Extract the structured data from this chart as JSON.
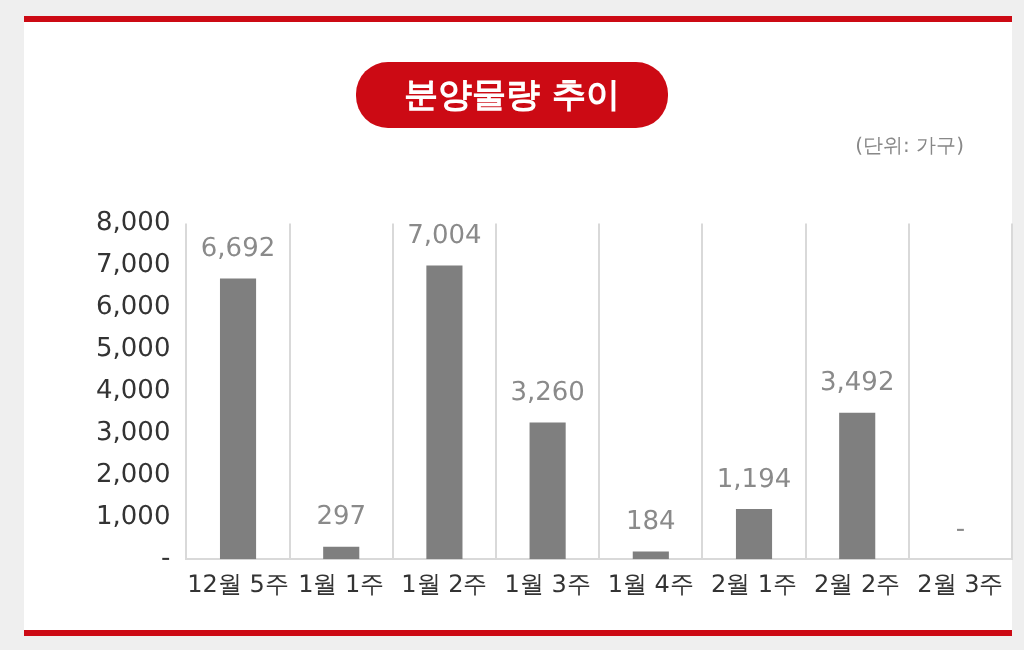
{
  "chart_data": {
    "type": "bar",
    "title": "분양물량 추이",
    "annotations": [
      "(단위: 가구)"
    ],
    "categories": [
      "12월 5주",
      "1월 1주",
      "1월 2주",
      "1월 3주",
      "1월 4주",
      "2월 1주",
      "2월 2주",
      "2월 3주"
    ],
    "values": [
      6692,
      297,
      7004,
      3260,
      184,
      1194,
      3492,
      0
    ],
    "value_labels": [
      "6,692",
      "297",
      "7,004",
      "3,260",
      "184",
      "1,194",
      "3,492",
      "-"
    ],
    "color": "#7f7f7f",
    "ylim": [
      0,
      8000
    ],
    "yticks": [
      {
        "value": 0,
        "label": "-"
      },
      {
        "value": 1000,
        "label": "1,000"
      },
      {
        "value": 2000,
        "label": "2,000"
      },
      {
        "value": 3000,
        "label": "3,000"
      },
      {
        "value": 4000,
        "label": "4,000"
      },
      {
        "value": 5000,
        "label": "5,000"
      },
      {
        "value": 6000,
        "label": "6,000"
      },
      {
        "value": 7000,
        "label": "7,000"
      },
      {
        "value": 8000,
        "label": "8,000"
      }
    ],
    "grid": "x",
    "legend": false
  }
}
